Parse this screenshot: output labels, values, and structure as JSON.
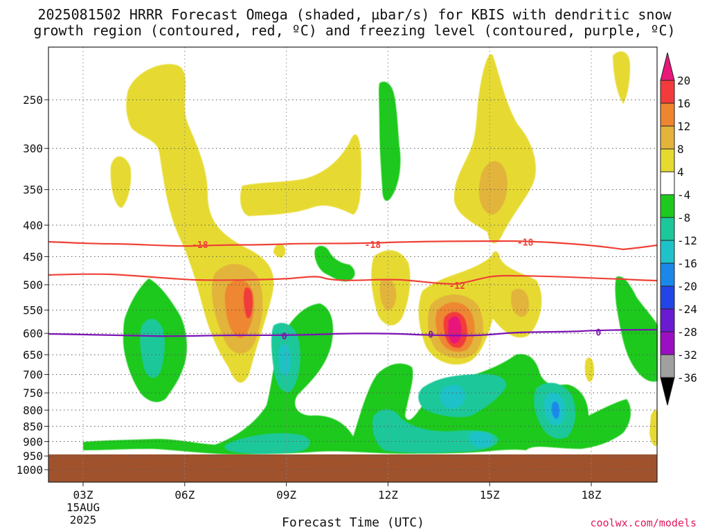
{
  "title": {
    "line1": "2025081502 HRRR Forecast Omega (shaded, µbar/s) for KBIS with dendritic snow",
    "line2": "growth region (contoured, red, ºC) and freezing level (contoured, purple, ºC)"
  },
  "xlabel": "Forecast Time (UTC)",
  "credit": "coolwx.com/models",
  "colors": {
    "dendritic_contour": "#ef4136",
    "freezing_contour": "#7b12b4",
    "ground": "#a0522d",
    "grid": "#555555"
  },
  "chart_data": {
    "type": "heatmap",
    "y_axis": {
      "quantity": "pressure (hPa)",
      "scale": "log",
      "reversed": true,
      "ticks": [
        250,
        300,
        350,
        400,
        450,
        500,
        550,
        600,
        650,
        700,
        750,
        800,
        850,
        900,
        950,
        1000
      ]
    },
    "x_axis": {
      "quantity": "forecast time (UTC)",
      "tick_labels": [
        "03Z",
        "06Z",
        "09Z",
        "12Z",
        "15Z",
        "18Z"
      ],
      "date_label": [
        "15AUG",
        "2025"
      ]
    },
    "grid": true,
    "colorbar": {
      "ticks": [
        20,
        16,
        12,
        8,
        4,
        -4,
        -8,
        -12,
        -16,
        -20,
        -24,
        -28,
        -32,
        -36
      ],
      "bins": [
        {
          "low": 20,
          "high": null,
          "color": "#e8177a"
        },
        {
          "low": 16,
          "high": 20,
          "color": "#f23b3b"
        },
        {
          "low": 12,
          "high": 16,
          "color": "#ee8630"
        },
        {
          "low": 8,
          "high": 12,
          "color": "#e2b43a"
        },
        {
          "low": 4,
          "high": 8,
          "color": "#e6da30"
        },
        {
          "low": -4,
          "high": 4,
          "color": "#ffffff"
        },
        {
          "low": -8,
          "high": -4,
          "color": "#1ec91e"
        },
        {
          "low": -12,
          "high": -8,
          "color": "#1cc89a"
        },
        {
          "low": -16,
          "high": -12,
          "color": "#1ec2c8"
        },
        {
          "low": -20,
          "high": -16,
          "color": "#1a88ea"
        },
        {
          "low": -24,
          "high": -20,
          "color": "#2145e6"
        },
        {
          "low": -28,
          "high": -24,
          "color": "#6a1ad1"
        },
        {
          "low": -32,
          "high": -28,
          "color": "#9a0fc2"
        },
        {
          "low": -36,
          "high": -32,
          "color": "#a0a0a0"
        },
        {
          "low": null,
          "high": -36,
          "color": "#000000"
        }
      ]
    },
    "contours": [
      {
        "name": "dendritic snow growth region",
        "color": "red",
        "levels": [
          -18,
          -12
        ],
        "labels": [
          "-18",
          "-18",
          "-18",
          "-12"
        ]
      },
      {
        "name": "freezing level",
        "color": "purple",
        "levels": [
          0
        ],
        "labels": [
          "0",
          "0",
          "0"
        ]
      }
    ],
    "omega_extrema": [
      {
        "time": "08Z",
        "pressure": 550,
        "value": "12 to 16",
        "sign": "ascent-negative"
      },
      {
        "time": "14Z",
        "pressure": 590,
        "value": ">20",
        "sign": "positive"
      },
      {
        "time": "17Z",
        "pressure": 800,
        "value": "-16 to -20",
        "sign": "negative"
      }
    ]
  }
}
